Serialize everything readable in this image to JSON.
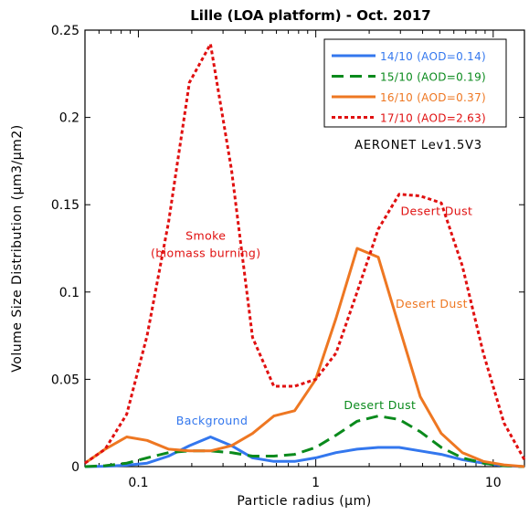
{
  "chart_data": {
    "type": "line",
    "title": "Lille (LOA platform) - Oct. 2017",
    "xlabel": "Particle radius (µm)",
    "ylabel": "Volume Size Distribution (µm3/µm2)",
    "x_scale": "log",
    "xlim": [
      0.05,
      15
    ],
    "ylim": [
      0,
      0.25
    ],
    "x_ticks": [
      0.1,
      1,
      10
    ],
    "x_tick_labels": [
      "0.1",
      "1",
      "10"
    ],
    "y_ticks": [
      0,
      0.05,
      0.1,
      0.15,
      0.2,
      0.25
    ],
    "y_tick_labels": [
      "0",
      "0.05",
      "0.1",
      "0.15",
      "0.2",
      "0.25"
    ],
    "grid": false,
    "legend_position": "top-right",
    "source_label": "AERONET Lev1.5V3",
    "x": [
      0.05,
      0.065,
      0.086,
      0.112,
      0.148,
      0.194,
      0.255,
      0.335,
      0.44,
      0.58,
      0.76,
      1.0,
      1.3,
      1.71,
      2.25,
      2.95,
      3.88,
      5.1,
      6.7,
      8.8,
      11.5,
      15.0
    ],
    "series": [
      {
        "name": "14/10 (AOD=0.14)",
        "color": "#3377ee",
        "dash": "solid",
        "values": [
          0.0,
          0.0002,
          0.0008,
          0.002,
          0.006,
          0.012,
          0.017,
          0.012,
          0.005,
          0.003,
          0.003,
          0.005,
          0.008,
          0.01,
          0.011,
          0.011,
          0.009,
          0.007,
          0.004,
          0.002,
          0.0005,
          0.0
        ]
      },
      {
        "name": "15/10 (AOD=0.19)",
        "color": "#0a8a1c",
        "dash": "dashed",
        "values": [
          0.0,
          0.0005,
          0.002,
          0.005,
          0.008,
          0.009,
          0.009,
          0.008,
          0.006,
          0.006,
          0.007,
          0.011,
          0.018,
          0.026,
          0.029,
          0.027,
          0.02,
          0.011,
          0.005,
          0.002,
          0.0005,
          0.0
        ]
      },
      {
        "name": "16/10 (AOD=0.37)",
        "color": "#ee7722",
        "dash": "solid",
        "values": [
          0.002,
          0.01,
          0.017,
          0.015,
          0.01,
          0.009,
          0.009,
          0.012,
          0.019,
          0.029,
          0.032,
          0.05,
          0.085,
          0.125,
          0.12,
          0.08,
          0.04,
          0.019,
          0.008,
          0.003,
          0.001,
          0.0
        ]
      },
      {
        "name": "17/10 (AOD=2.63)",
        "color": "#e01010",
        "dash": "dotted",
        "values": [
          0.002,
          0.01,
          0.03,
          0.075,
          0.14,
          0.22,
          0.242,
          0.17,
          0.074,
          0.046,
          0.046,
          0.05,
          0.065,
          0.1,
          0.136,
          0.156,
          0.155,
          0.151,
          0.115,
          0.065,
          0.025,
          0.004
        ]
      }
    ],
    "annotations": [
      {
        "text": "Smoke",
        "x": 0.24,
        "y": 0.13,
        "color": "#e01010"
      },
      {
        "text": "(biomass burning)",
        "x": 0.24,
        "y": 0.12,
        "color": "#e01010"
      },
      {
        "text": "Desert Dust",
        "x": 4.8,
        "y": 0.144,
        "color": "#e01010"
      },
      {
        "text": "Desert Dust",
        "x": 4.5,
        "y": 0.091,
        "color": "#ee7722"
      },
      {
        "text": "Desert Dust",
        "x": 2.3,
        "y": 0.033,
        "color": "#0a8a1c"
      },
      {
        "text": "Background",
        "x": 0.26,
        "y": 0.024,
        "color": "#3377ee"
      }
    ]
  }
}
